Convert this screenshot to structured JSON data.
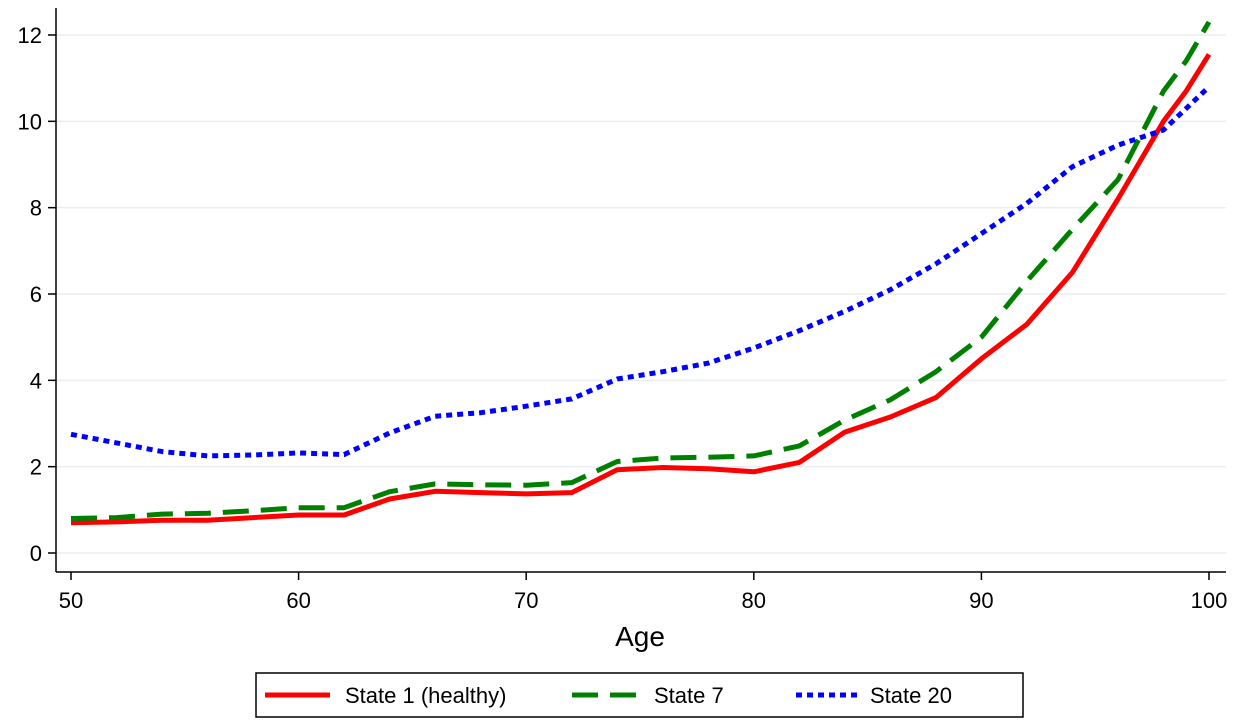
{
  "chart_data": {
    "type": "line",
    "title": "",
    "xlabel": "Age",
    "ylabel": "",
    "xlim": [
      50,
      100
    ],
    "ylim": [
      0,
      12.6
    ],
    "x_ticks": [
      50,
      60,
      70,
      80,
      90,
      100
    ],
    "y_ticks": [
      0,
      2,
      4,
      6,
      8,
      10,
      12
    ],
    "grid": "horizontal",
    "legend_position": "bottom",
    "x": [
      50,
      52,
      54,
      56,
      58,
      60,
      62,
      64,
      66,
      68,
      70,
      72,
      74,
      76,
      78,
      80,
      82,
      84,
      86,
      88,
      90,
      92,
      94,
      96,
      98,
      99,
      100
    ],
    "series": [
      {
        "name": "State 1 (healthy)",
        "color": "#ff0000",
        "style": "solid",
        "values": [
          0.7,
          0.72,
          0.76,
          0.76,
          0.82,
          0.88,
          0.88,
          1.25,
          1.43,
          1.4,
          1.37,
          1.4,
          1.93,
          1.98,
          1.95,
          1.88,
          2.1,
          2.8,
          3.15,
          3.6,
          4.5,
          5.3,
          6.5,
          8.2,
          10.0,
          10.7,
          11.55
        ]
      },
      {
        "name": "State 7",
        "color": "#008000",
        "style": "dashed",
        "values": [
          0.8,
          0.82,
          0.9,
          0.92,
          0.98,
          1.05,
          1.05,
          1.42,
          1.6,
          1.58,
          1.57,
          1.63,
          2.12,
          2.2,
          2.22,
          2.25,
          2.48,
          3.08,
          3.55,
          4.2,
          5.0,
          6.3,
          7.5,
          8.65,
          10.7,
          11.4,
          12.3
        ]
      },
      {
        "name": "State 20",
        "color": "#0000ff",
        "style": "dotted",
        "values": [
          2.75,
          2.55,
          2.35,
          2.25,
          2.27,
          2.32,
          2.28,
          2.78,
          3.17,
          3.25,
          3.4,
          3.57,
          4.03,
          4.2,
          4.4,
          4.75,
          5.15,
          5.6,
          6.1,
          6.7,
          7.4,
          8.1,
          8.95,
          9.45,
          9.8,
          10.3,
          10.8
        ]
      }
    ]
  }
}
